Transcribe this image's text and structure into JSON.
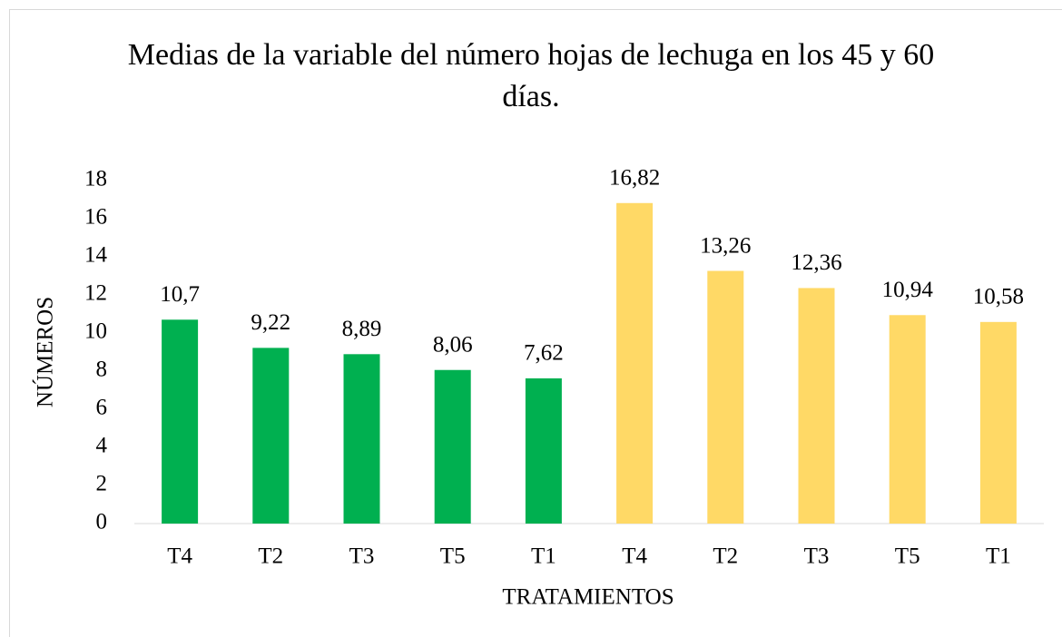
{
  "chart_data": {
    "type": "bar",
    "title": "Medias de la variable del número hojas de lechuga en los 45 y 60 días.",
    "x_label": "TRATAMIENTOS",
    "y_label": "NÚMEROS",
    "categories": [
      "T4",
      "T2",
      "T3",
      "T5",
      "T1",
      "T4",
      "T2",
      "T3",
      "T5",
      "T1"
    ],
    "values": [
      10.7,
      9.22,
      8.89,
      8.06,
      7.62,
      16.82,
      13.26,
      12.36,
      10.94,
      10.58
    ],
    "value_labels": [
      "10,7",
      "9,22",
      "8,89",
      "8,06",
      "7,62",
      "16,82",
      "13,26",
      "12,36",
      "10,94",
      "10,58"
    ],
    "colors": [
      "#00b050",
      "#00b050",
      "#00b050",
      "#00b050",
      "#00b050",
      "#ffd966",
      "#ffd966",
      "#ffd966",
      "#ffd966",
      "#ffd966"
    ],
    "ylim": [
      0,
      18
    ],
    "yticks": [
      0,
      2,
      4,
      6,
      8,
      10,
      12,
      14,
      16,
      18
    ],
    "grid": false
  }
}
